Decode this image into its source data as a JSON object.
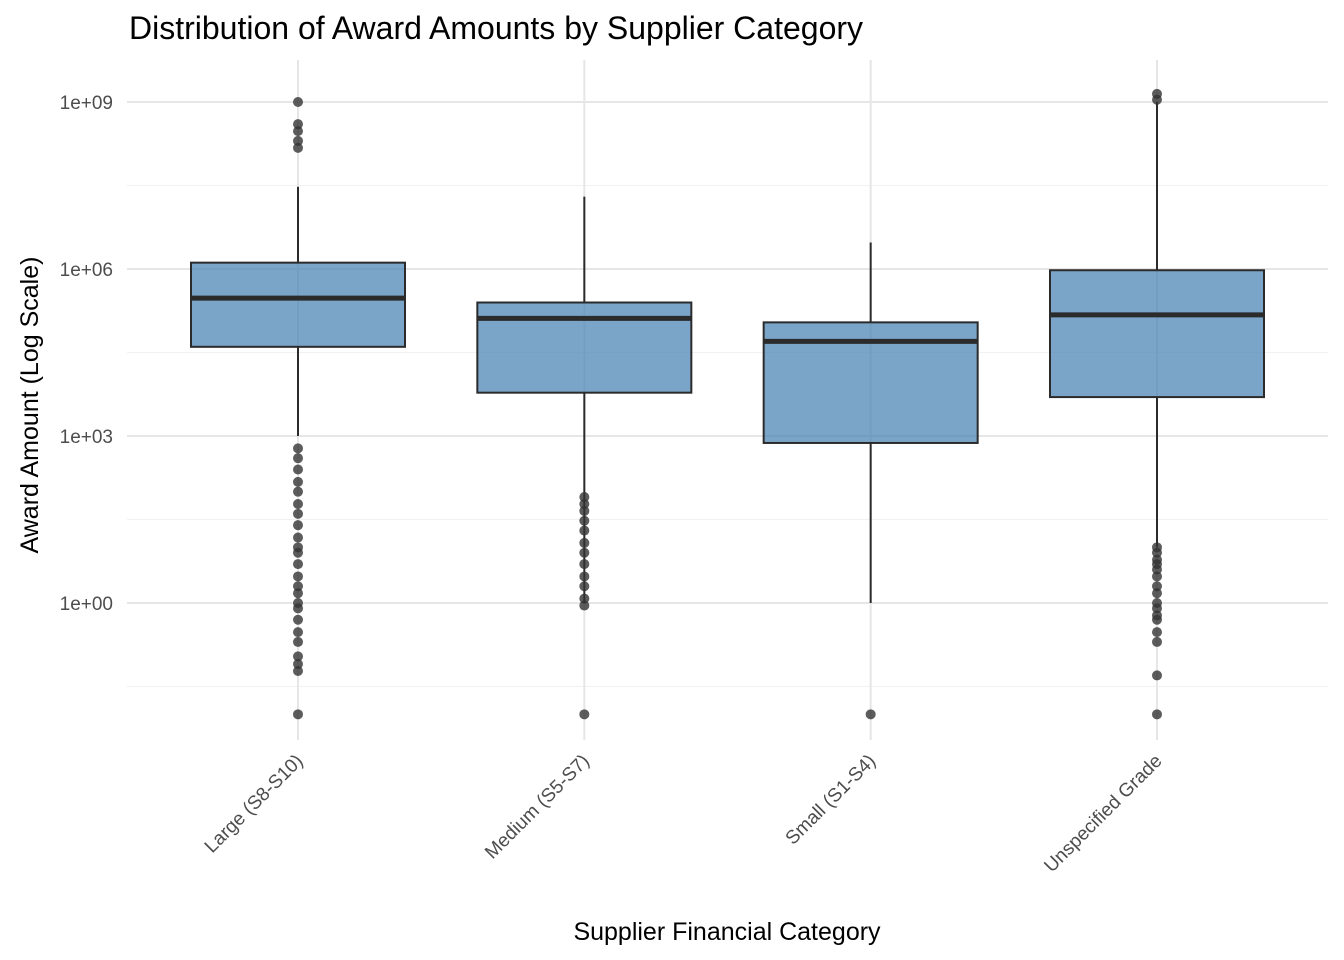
{
  "chart_data": {
    "type": "boxplot",
    "title": "Distribution of Award Amounts by Supplier Category",
    "xlabel": "Supplier Financial Category",
    "ylabel": "Award Amount (Log Scale)",
    "y_scale": "log10",
    "ylim": [
      0.003,
      3000000000
    ],
    "y_ticks": [
      {
        "value": 1,
        "label": "1e+00"
      },
      {
        "value": 1000,
        "label": "1e+03"
      },
      {
        "value": 1000000,
        "label": "1e+06"
      },
      {
        "value": 1000000000,
        "label": "1e+09"
      }
    ],
    "y_minor_ticks": [
      0.03162,
      31.62,
      31623,
      31622777
    ],
    "grid": true,
    "box_fill": "#4682b4",
    "box_stroke": "#2b2b2b",
    "outlier_color": "#333333",
    "categories": [
      "Large (S8-S10)",
      "Medium (S5-S7)",
      "Small (S1-S4)",
      "Unspecified Grade"
    ],
    "boxes": [
      {
        "category": "Large (S8-S10)",
        "whisker_low": 1000,
        "q1": 40000,
        "median": 300000,
        "q3": 1300000,
        "whisker_high": 30000000,
        "outliers": [
          0.01,
          0.06,
          0.08,
          0.11,
          0.2,
          0.3,
          0.5,
          0.8,
          1,
          1.5,
          2,
          3,
          5,
          8,
          10,
          15,
          25,
          40,
          60,
          100,
          150,
          250,
          400,
          600,
          150000000,
          200000000,
          300000000,
          400000000,
          1000000000
        ]
      },
      {
        "category": "Medium (S5-S7)",
        "whisker_low": 1,
        "q1": 6000,
        "median": 130000,
        "q3": 250000,
        "whisker_high": 20000000,
        "outliers": [
          0.01,
          0.9,
          1.2,
          2,
          3,
          5,
          8,
          12,
          20,
          30,
          45,
          60,
          80
        ]
      },
      {
        "category": "Small (S1-S4)",
        "whisker_low": 1,
        "q1": 750,
        "median": 50000,
        "q3": 110000,
        "whisker_high": 3000000,
        "outliers": [
          0.01
        ]
      },
      {
        "category": "Unspecified Grade",
        "whisker_low": 10,
        "q1": 5000,
        "median": 150000,
        "q3": 950000,
        "whisker_high": 1000000000,
        "outliers": [
          0.01,
          0.05,
          0.2,
          0.3,
          0.5,
          0.6,
          0.8,
          1,
          1.5,
          2,
          3,
          4,
          5,
          6,
          8,
          10,
          1100000000,
          1400000000
        ]
      }
    ]
  }
}
